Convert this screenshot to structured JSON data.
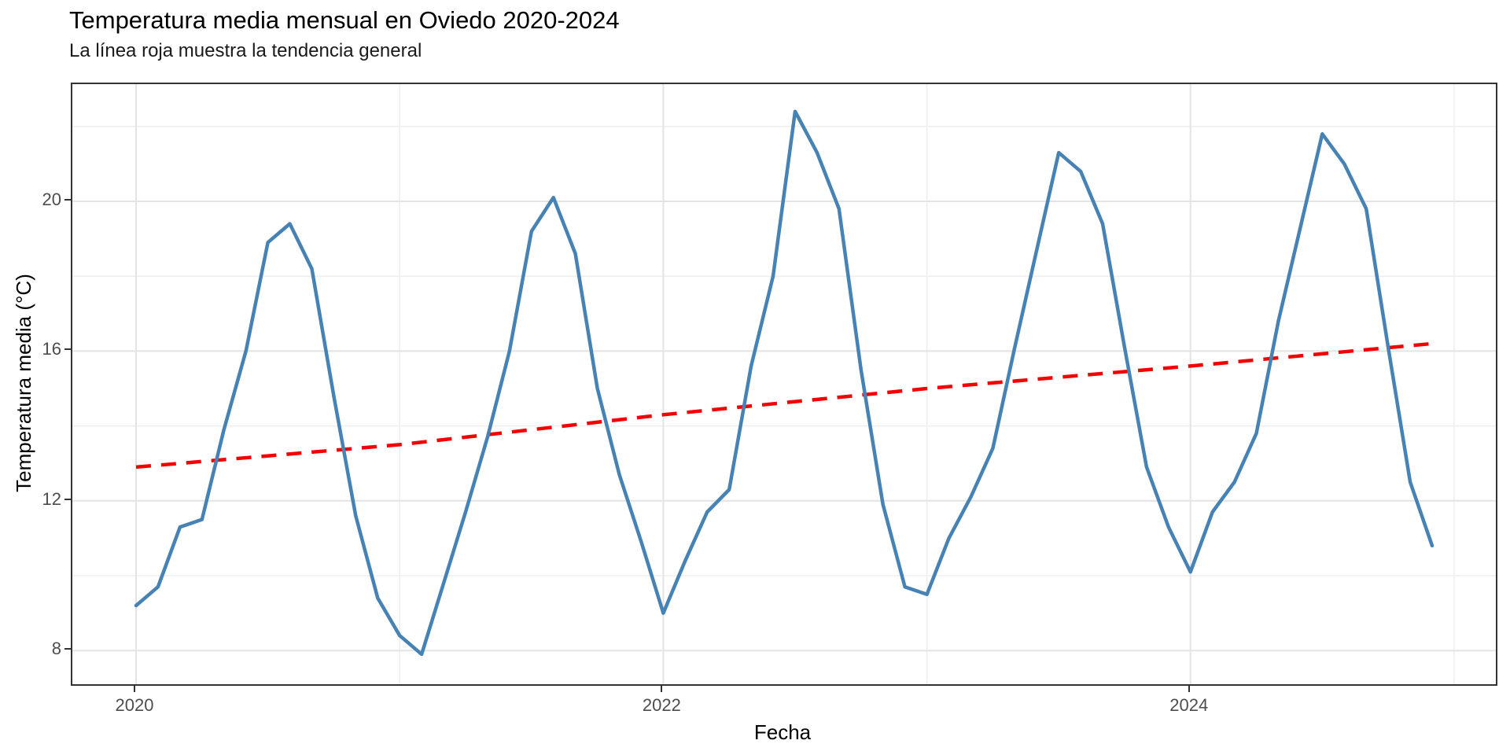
{
  "title": "Temperatura media mensual en Oviedo 2020-2024",
  "subtitle": "La línea roja muestra la tendencia general",
  "colors": {
    "temperature_line": "#4682b4",
    "trend_line": "#f40000",
    "grid_major": "#e4e4e4",
    "grid_minor": "#efefef",
    "panel_border": "#333333",
    "tick_mark": "#333333",
    "tick_label": "#4d4d4d",
    "axis_title": "#000000",
    "background": "#ffffff"
  },
  "chart_data": {
    "type": "line",
    "title": "Temperatura media mensual en Oviedo 2020-2024",
    "subtitle": "La línea roja muestra la tendencia general",
    "xlabel": "Fecha",
    "ylabel": "Temperatura media (°C)",
    "grid": true,
    "legend": false,
    "xlim_months": [
      -2.9,
      61.9
    ],
    "ylim": [
      7.1,
      23.13
    ],
    "x": [
      "2020-01",
      "2020-02",
      "2020-03",
      "2020-04",
      "2020-05",
      "2020-06",
      "2020-07",
      "2020-08",
      "2020-09",
      "2020-10",
      "2020-11",
      "2020-12",
      "2021-01",
      "2021-02",
      "2021-03",
      "2021-04",
      "2021-05",
      "2021-06",
      "2021-07",
      "2021-08",
      "2021-09",
      "2021-10",
      "2021-11",
      "2021-12",
      "2022-01",
      "2022-02",
      "2022-03",
      "2022-04",
      "2022-05",
      "2022-06",
      "2022-07",
      "2022-08",
      "2022-09",
      "2022-10",
      "2022-11",
      "2022-12",
      "2023-01",
      "2023-02",
      "2023-03",
      "2023-04",
      "2023-05",
      "2023-06",
      "2023-07",
      "2023-08",
      "2023-09",
      "2023-10",
      "2023-11",
      "2023-12",
      "2024-01",
      "2024-02",
      "2024-03",
      "2024-04",
      "2024-05",
      "2024-06",
      "2024-07",
      "2024-08",
      "2024-09",
      "2024-10",
      "2024-11",
      "2024-12"
    ],
    "series": [
      {
        "name": "Temperatura media mensual",
        "style": "solid",
        "color": "#4682b4",
        "values": [
          9.2,
          9.7,
          11.3,
          11.5,
          13.9,
          16.0,
          18.9,
          19.4,
          18.2,
          14.8,
          11.6,
          9.4,
          8.4,
          7.9,
          9.8,
          11.7,
          13.7,
          16.0,
          19.2,
          20.1,
          18.6,
          15.0,
          12.7,
          10.9,
          9.0,
          10.4,
          11.7,
          12.3,
          15.6,
          18.0,
          22.4,
          21.3,
          19.8,
          15.5,
          11.9,
          9.7,
          9.5,
          11.0,
          12.1,
          13.4,
          16.1,
          18.7,
          21.3,
          20.8,
          19.4,
          16.1,
          12.9,
          11.3,
          10.1,
          11.7,
          12.5,
          13.8,
          16.8,
          19.3,
          21.8,
          21.0,
          19.8,
          16.1,
          12.5,
          10.8
        ]
      },
      {
        "name": "Tendencia general",
        "style": "dashed",
        "color": "#f40000",
        "x_months": [
          0,
          12,
          24,
          36,
          48,
          59
        ],
        "values": [
          12.9,
          13.5,
          14.3,
          15.0,
          15.6,
          16.2
        ]
      }
    ],
    "y_major_ticks": [
      8,
      12,
      16,
      20
    ],
    "y_minor_ticks": [
      10,
      14,
      18,
      22
    ],
    "x_major_ticks": [
      {
        "label": "2020",
        "month": 0
      },
      {
        "label": "2022",
        "month": 24
      },
      {
        "label": "2024",
        "month": 48
      }
    ],
    "x_minor_months": [
      12,
      36,
      60
    ]
  }
}
